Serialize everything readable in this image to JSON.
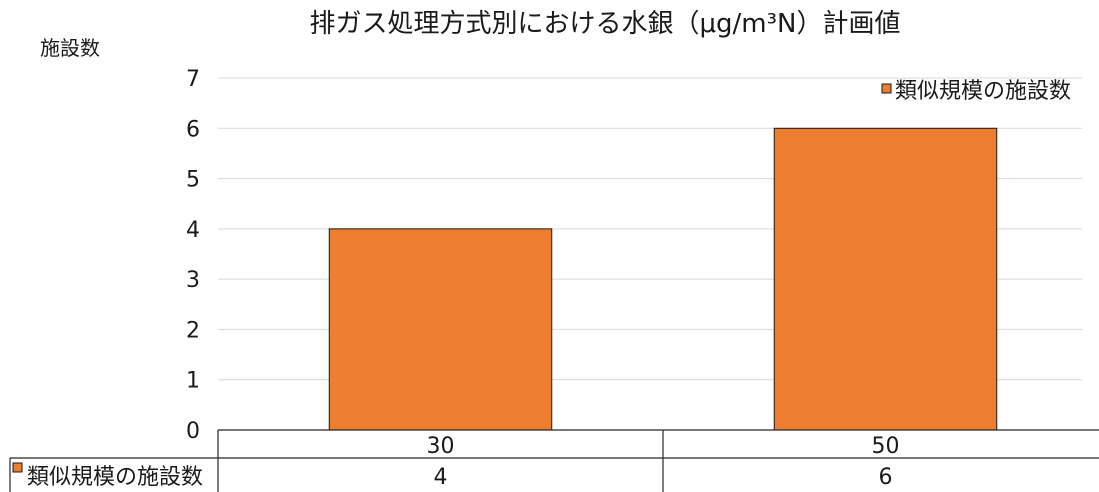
{
  "chart_data": {
    "type": "bar",
    "title": "排ガス処理方式別における水銀（μg/m³N）計画値",
    "ylabel": "施設数",
    "xlabel": "",
    "categories": [
      "30",
      "50"
    ],
    "series": [
      {
        "name": "類似規模の施設数",
        "values": [
          4,
          6
        ],
        "color": "#ED7D31"
      }
    ],
    "ylim": [
      0,
      7
    ],
    "yticks": [
      0,
      1,
      2,
      3,
      4,
      5,
      6,
      7
    ],
    "grid": true,
    "legend": "top-right",
    "data_table": true,
    "bar_border_color": "#1a1a1a"
  }
}
